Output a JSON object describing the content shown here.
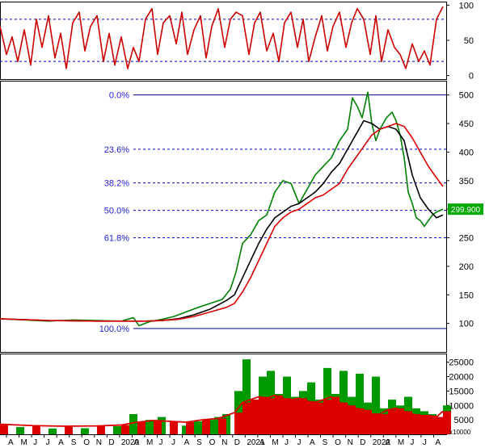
{
  "chart_data": [
    {
      "panel": "oscillator",
      "type": "line",
      "y_ticks": [
        0,
        50,
        100
      ],
      "ylim": [
        -5,
        105
      ],
      "reference_lines": [
        20,
        80
      ],
      "series": [
        {
          "color": "#cc0000",
          "x": [
            0,
            8,
            15,
            22,
            30,
            38,
            45,
            52,
            60,
            68,
            75,
            82,
            90,
            98,
            105,
            112,
            120,
            128,
            135,
            142,
            150,
            158,
            165,
            172,
            180,
            188,
            195,
            202,
            210,
            218,
            225,
            232,
            240,
            248,
            255,
            262,
            270,
            278,
            285,
            292,
            300,
            308,
            315,
            322,
            330,
            338,
            345,
            352,
            360,
            368,
            375,
            382,
            390,
            398,
            405,
            412,
            420,
            428,
            435,
            442,
            450,
            458,
            465,
            472,
            480,
            488,
            495,
            502,
            510,
            518,
            525,
            532,
            540,
            548
          ],
          "values": [
            70,
            30,
            55,
            20,
            65,
            15,
            80,
            40,
            85,
            25,
            60,
            10,
            75,
            90,
            35,
            70,
            85,
            20,
            60,
            15,
            55,
            10,
            40,
            20,
            80,
            95,
            30,
            75,
            85,
            45,
            90,
            30,
            65,
            85,
            25,
            70,
            95,
            40,
            80,
            90,
            85,
            30,
            75,
            90,
            35,
            60,
            20,
            75,
            90,
            40,
            80,
            20,
            55,
            85,
            35,
            70,
            90,
            40,
            75,
            95,
            80,
            30,
            85,
            20,
            65,
            40,
            30,
            10,
            45,
            20,
            35,
            15,
            80,
            98
          ]
        }
      ]
    },
    {
      "panel": "price",
      "type": "line",
      "y_ticks": [
        100,
        150,
        200,
        250,
        300,
        350,
        400,
        450,
        500
      ],
      "ylim": [
        50,
        525
      ],
      "last_price": "299.900",
      "fibonacci": [
        {
          "label": "0.0%",
          "value": 500
        },
        {
          "label": "23.6%",
          "value": 405
        },
        {
          "label": "38.2%",
          "value": 346
        },
        {
          "label": "50.0%",
          "value": 298
        },
        {
          "label": "61.8%",
          "value": 250
        },
        {
          "label": "100.0%",
          "value": 91
        }
      ],
      "series": [
        {
          "color": "#008000",
          "x": [
            0,
            30,
            60,
            90,
            120,
            150,
            165,
            172,
            185,
            200,
            215,
            230,
            245,
            260,
            275,
            285,
            292,
            300,
            310,
            320,
            330,
            340,
            350,
            360,
            370,
            380,
            390,
            400,
            410,
            420,
            430,
            436,
            442,
            448,
            455,
            460,
            465,
            470,
            478,
            485,
            490,
            495,
            500,
            505,
            510,
            515,
            520,
            525,
            530,
            535,
            540,
            548
          ],
          "values": [
            108,
            106,
            104,
            106,
            105,
            104,
            110,
            96,
            103,
            107,
            112,
            120,
            128,
            135,
            142,
            160,
            190,
            240,
            255,
            280,
            290,
            330,
            350,
            345,
            310,
            335,
            360,
            375,
            390,
            420,
            440,
            495,
            480,
            460,
            505,
            450,
            420,
            440,
            460,
            470,
            455,
            430,
            390,
            330,
            310,
            285,
            280,
            270,
            280,
            290,
            295,
            300
          ]
        },
        {
          "color": "#000000",
          "x": [
            0,
            60,
            120,
            160,
            180,
            200,
            220,
            240,
            260,
            280,
            290,
            300,
            310,
            320,
            330,
            340,
            350,
            360,
            370,
            380,
            390,
            400,
            410,
            420,
            430,
            440,
            450,
            460,
            470,
            480,
            490,
            500,
            510,
            520,
            530,
            540,
            548
          ],
          "values": [
            108,
            105,
            104,
            104,
            104,
            105,
            108,
            115,
            125,
            140,
            150,
            180,
            210,
            240,
            265,
            285,
            295,
            305,
            310,
            320,
            330,
            345,
            365,
            380,
            405,
            430,
            455,
            450,
            440,
            445,
            440,
            420,
            360,
            320,
            300,
            285,
            290
          ]
        },
        {
          "color": "#dd0000",
          "x": [
            0,
            60,
            120,
            160,
            180,
            200,
            220,
            240,
            260,
            280,
            290,
            300,
            310,
            320,
            330,
            340,
            350,
            360,
            370,
            380,
            390,
            400,
            410,
            420,
            430,
            440,
            450,
            460,
            470,
            480,
            490,
            500,
            510,
            520,
            530,
            540,
            548
          ],
          "values": [
            108,
            105,
            104,
            104,
            104,
            105,
            107,
            112,
            120,
            128,
            135,
            155,
            180,
            210,
            240,
            270,
            285,
            295,
            300,
            310,
            320,
            325,
            335,
            345,
            370,
            390,
            410,
            430,
            440,
            445,
            450,
            445,
            425,
            400,
            375,
            355,
            340
          ]
        }
      ]
    },
    {
      "panel": "volume",
      "type": "bar",
      "y_ticks": [
        5000,
        10000,
        15000,
        20000,
        25000
      ],
      "ylim": [
        0,
        28000
      ],
      "unit_label": "x10000",
      "series": [
        {
          "color": "#009900",
          "x": [
            0,
            20,
            40,
            60,
            80,
            100,
            120,
            140,
            160,
            170,
            180,
            195,
            210,
            225,
            240,
            255,
            265,
            275,
            290,
            300,
            310,
            320,
            330,
            340,
            350,
            360,
            370,
            380,
            390,
            400,
            410,
            420,
            430,
            440,
            450,
            460,
            470,
            480,
            490,
            500,
            510,
            520,
            530,
            540,
            548
          ],
          "values": [
            2000,
            2500,
            2200,
            2000,
            2400,
            2100,
            2600,
            2800,
            7000,
            3000,
            5000,
            6000,
            3500,
            3000,
            4500,
            5000,
            6000,
            7000,
            15000,
            26000,
            12000,
            20000,
            22000,
            14000,
            20000,
            13000,
            15000,
            18000,
            12000,
            23000,
            14000,
            22000,
            13000,
            21000,
            11000,
            20000,
            9000,
            12000,
            10000,
            13000,
            9000,
            8000,
            7000,
            6000,
            10000
          ]
        },
        {
          "color": "#dd0000",
          "x": [
            0,
            40,
            80,
            120,
            150,
            170,
            190,
            210,
            230,
            250,
            270,
            290,
            300,
            310,
            320,
            330,
            340,
            350,
            360,
            370,
            380,
            390,
            400,
            410,
            420,
            430,
            440,
            450,
            460,
            470,
            480,
            490,
            500,
            510,
            520,
            530,
            540,
            548
          ],
          "values": [
            3500,
            3000,
            2800,
            2900,
            3200,
            4200,
            4800,
            4500,
            4200,
            5000,
            5500,
            7500,
            11000,
            12000,
            13000,
            12500,
            13500,
            12500,
            12000,
            12500,
            11500,
            11000,
            12000,
            13000,
            11000,
            10000,
            9000,
            8500,
            7000,
            7000,
            8500,
            9000,
            8000,
            7000,
            6500,
            6500,
            6000,
            8000
          ]
        }
      ]
    }
  ],
  "x_axis": {
    "labels": [
      "A",
      "M",
      "J",
      "J",
      "A",
      "S",
      "O",
      "N",
      "D",
      "2020",
      "A",
      "M",
      "J",
      "J",
      "A",
      "S",
      "O",
      "N",
      "D",
      "2021",
      "A",
      "M",
      "J",
      "J",
      "A",
      "S",
      "O",
      "N",
      "D",
      "2022",
      "A",
      "M",
      "J",
      "J",
      "A"
    ]
  }
}
